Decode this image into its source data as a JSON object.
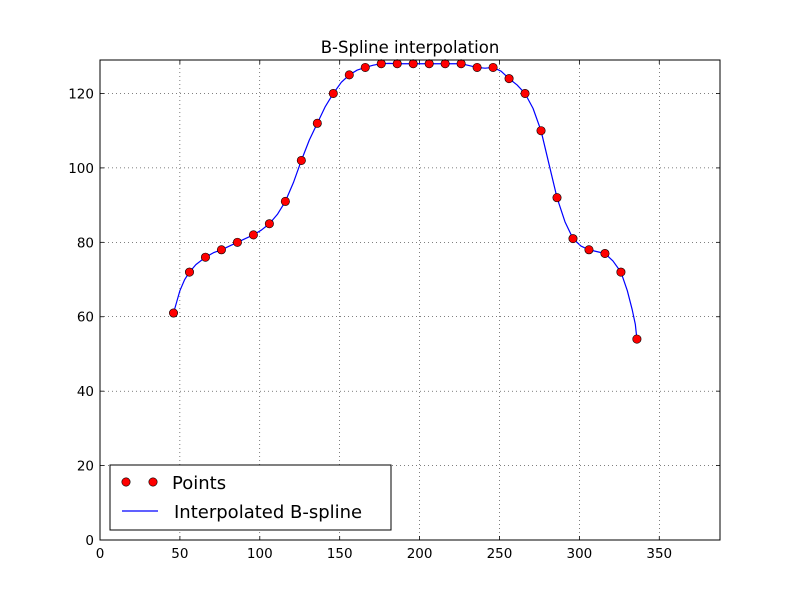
{
  "chart_data": {
    "type": "line",
    "title": "B-Spline interpolation",
    "xlabel": "",
    "ylabel": "",
    "xlim": [
      0,
      388
    ],
    "ylim": [
      0,
      129
    ],
    "xticks": [
      0,
      50,
      100,
      150,
      200,
      250,
      300,
      350
    ],
    "yticks": [
      0,
      20,
      40,
      60,
      80,
      100,
      120
    ],
    "xtick_labels": [
      "0",
      "50",
      "100",
      "150",
      "200",
      "250",
      "300",
      "350"
    ],
    "ytick_labels": [
      "0",
      "20",
      "40",
      "60",
      "80",
      "100",
      "120"
    ],
    "grid": true,
    "legend": {
      "position": "lower-left",
      "entries": [
        "Points",
        "Interpolated B-spline"
      ]
    },
    "series": [
      {
        "name": "Points",
        "style": "markers",
        "color": "#ff0000",
        "edge_color": "#000000",
        "x": [
          46,
          56,
          66,
          76,
          86,
          96,
          106,
          116,
          126,
          136,
          146,
          156,
          166,
          176,
          186,
          196,
          206,
          216,
          226,
          236,
          246,
          256,
          266,
          276,
          286,
          296,
          306,
          316,
          326,
          336
        ],
        "y": [
          61,
          72,
          76,
          78,
          80,
          82,
          85,
          91,
          102,
          112,
          120,
          125,
          127,
          128,
          128,
          128,
          128,
          128,
          128,
          127,
          127,
          124,
          120,
          110,
          92,
          81,
          78,
          77,
          72,
          54
        ]
      },
      {
        "name": "Interpolated B-spline",
        "style": "line",
        "color": "#0000ff",
        "x": [
          46,
          48,
          50,
          53,
          56,
          60,
          66,
          71,
          76,
          81,
          86,
          91,
          96,
          101,
          106,
          111,
          116,
          121,
          126,
          131,
          136,
          141,
          146,
          151,
          156,
          161,
          166,
          171,
          176,
          181,
          186,
          191,
          196,
          201,
          206,
          211,
          216,
          221,
          226,
          231,
          236,
          241,
          246,
          251,
          256,
          261,
          266,
          271,
          276,
          281,
          286,
          291,
          296,
          301,
          306,
          311,
          316,
          321,
          326,
          330,
          333,
          335,
          336
        ],
        "y": [
          61,
          64,
          67,
          70,
          72,
          74,
          76,
          77.2,
          78,
          79,
          80,
          81,
          82,
          83.3,
          85,
          87.5,
          91,
          96,
          102,
          107.5,
          112,
          116.5,
          120,
          123,
          125,
          126.3,
          127,
          127.6,
          128,
          128.1,
          128,
          128,
          128,
          128,
          128,
          128,
          128,
          128,
          128,
          127.5,
          127,
          126.8,
          127,
          126,
          124,
          122.3,
          120,
          116,
          110,
          101,
          92,
          85.5,
          81,
          79,
          78,
          77.5,
          77,
          75,
          72,
          67,
          62,
          58,
          54
        ]
      }
    ]
  }
}
